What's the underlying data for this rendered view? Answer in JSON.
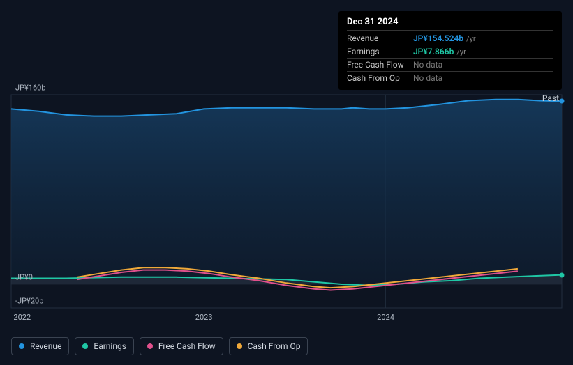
{
  "chart": {
    "type": "line-area",
    "background_color": "#0d1421",
    "plot_bg": "#0f1a2a",
    "grid_color": "#1a2433",
    "panel_sep_color": "#1e2a3a",
    "past_label": "Past",
    "y_axis": {
      "ticks": [
        {
          "label": "JP¥160b",
          "value": 160
        },
        {
          "label": "JP¥0",
          "value": 0
        },
        {
          "label": "-JP¥20b",
          "value": -20
        }
      ]
    },
    "x_axis": {
      "ticks": [
        {
          "label": "2022",
          "t": 0.02
        },
        {
          "label": "2023",
          "t": 0.35
        },
        {
          "label": "2024",
          "t": 0.68
        }
      ]
    },
    "series": {
      "revenue": {
        "label": "Revenue",
        "color": "#2394df",
        "fill": true,
        "data": [
          [
            0.0,
            148
          ],
          [
            0.05,
            146
          ],
          [
            0.1,
            143
          ],
          [
            0.15,
            142
          ],
          [
            0.2,
            142
          ],
          [
            0.25,
            143
          ],
          [
            0.3,
            144
          ],
          [
            0.35,
            148
          ],
          [
            0.4,
            149
          ],
          [
            0.45,
            149
          ],
          [
            0.5,
            149
          ],
          [
            0.55,
            148
          ],
          [
            0.6,
            148
          ],
          [
            0.62,
            149
          ],
          [
            0.65,
            148
          ],
          [
            0.68,
            148
          ],
          [
            0.72,
            149
          ],
          [
            0.78,
            152
          ],
          [
            0.83,
            155
          ],
          [
            0.88,
            156
          ],
          [
            0.92,
            156
          ],
          [
            0.96,
            155
          ],
          [
            1.0,
            154.5
          ]
        ]
      },
      "earnings": {
        "label": "Earnings",
        "color": "#1fc7a5",
        "fill": true,
        "data": [
          [
            0.0,
            5
          ],
          [
            0.1,
            5
          ],
          [
            0.2,
            6
          ],
          [
            0.3,
            6
          ],
          [
            0.4,
            5
          ],
          [
            0.5,
            4
          ],
          [
            0.55,
            2
          ],
          [
            0.6,
            0
          ],
          [
            0.65,
            -1
          ],
          [
            0.7,
            0
          ],
          [
            0.75,
            2
          ],
          [
            0.8,
            3
          ],
          [
            0.85,
            5
          ],
          [
            0.9,
            6
          ],
          [
            0.95,
            7
          ],
          [
            1.0,
            7.9
          ]
        ]
      },
      "free_cash_flow": {
        "label": "Free Cash Flow",
        "color": "#e0508c",
        "fill": false,
        "range": [
          0.12,
          0.92
        ],
        "data": [
          [
            0.12,
            4
          ],
          [
            0.16,
            7
          ],
          [
            0.2,
            10
          ],
          [
            0.24,
            12
          ],
          [
            0.28,
            12
          ],
          [
            0.32,
            11
          ],
          [
            0.36,
            9
          ],
          [
            0.4,
            6
          ],
          [
            0.45,
            3
          ],
          [
            0.5,
            -1
          ],
          [
            0.55,
            -4
          ],
          [
            0.58,
            -5
          ],
          [
            0.62,
            -4
          ],
          [
            0.66,
            -2
          ],
          [
            0.7,
            0
          ],
          [
            0.74,
            2
          ],
          [
            0.78,
            4
          ],
          [
            0.82,
            6
          ],
          [
            0.86,
            8
          ],
          [
            0.9,
            10
          ],
          [
            0.92,
            11
          ]
        ]
      },
      "cash_from_op": {
        "label": "Cash From Op",
        "color": "#f0a93a",
        "fill": false,
        "range": [
          0.12,
          0.92
        ],
        "data": [
          [
            0.12,
            6
          ],
          [
            0.16,
            9
          ],
          [
            0.2,
            12
          ],
          [
            0.24,
            14
          ],
          [
            0.28,
            14
          ],
          [
            0.32,
            13
          ],
          [
            0.36,
            11
          ],
          [
            0.4,
            8
          ],
          [
            0.45,
            5
          ],
          [
            0.5,
            1
          ],
          [
            0.55,
            -2
          ],
          [
            0.58,
            -3
          ],
          [
            0.62,
            -2
          ],
          [
            0.66,
            0
          ],
          [
            0.7,
            2
          ],
          [
            0.74,
            4
          ],
          [
            0.78,
            6
          ],
          [
            0.82,
            8
          ],
          [
            0.86,
            10
          ],
          [
            0.9,
            12
          ],
          [
            0.92,
            13
          ]
        ]
      }
    },
    "marker_t": 1.0
  },
  "tooltip": {
    "title": "Dec 31 2024",
    "rows": [
      {
        "key": "revenue",
        "label": "Revenue",
        "value": "JP¥154.524b",
        "suffix": "/yr",
        "color": "#2394df"
      },
      {
        "key": "earnings",
        "label": "Earnings",
        "value": "JP¥7.866b",
        "suffix": "/yr",
        "color": "#1fc7a5"
      },
      {
        "key": "free_cash_flow",
        "label": "Free Cash Flow",
        "nodata": "No data"
      },
      {
        "key": "cash_from_op",
        "label": "Cash From Op",
        "nodata": "No data"
      }
    ]
  },
  "legend": [
    {
      "key": "revenue",
      "label": "Revenue",
      "color": "#2394df"
    },
    {
      "key": "earnings",
      "label": "Earnings",
      "color": "#1fc7a5"
    },
    {
      "key": "free_cash_flow",
      "label": "Free Cash Flow",
      "color": "#e0508c"
    },
    {
      "key": "cash_from_op",
      "label": "Cash From Op",
      "color": "#f0a93a"
    }
  ]
}
